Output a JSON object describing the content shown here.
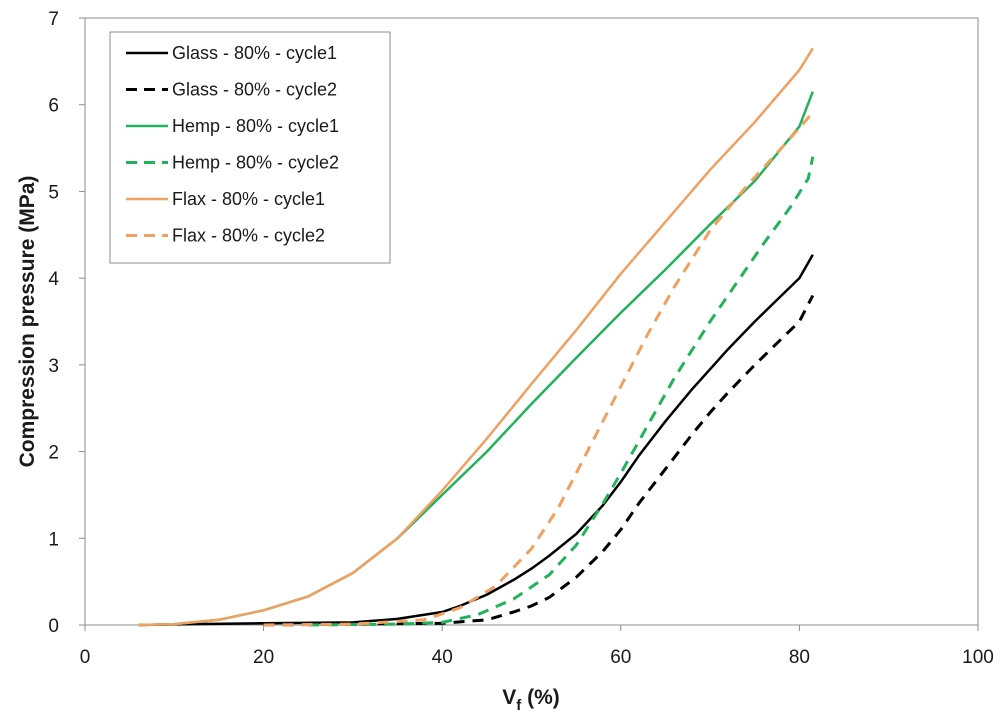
{
  "chart_data": {
    "type": "line",
    "title": "",
    "xlabel": "V",
    "xlabel_subscript": "f",
    "xlabel_suffix": " (%)",
    "ylabel": "Compression pressure (MPa)",
    "xlim": [
      0,
      100
    ],
    "ylim": [
      0,
      7
    ],
    "x_ticks": [
      "0",
      "20",
      "40",
      "60",
      "80",
      "100"
    ],
    "y_ticks": [
      "0",
      "1",
      "2",
      "3",
      "4",
      "5",
      "6",
      "7"
    ],
    "grid": false,
    "legend_position": "top-left",
    "series": [
      {
        "name": "Glass - 80% - cycle1",
        "color": "#000000",
        "dash": "solid",
        "points": [
          [
            6,
            0
          ],
          [
            12,
            0.01
          ],
          [
            20,
            0.02
          ],
          [
            30,
            0.03
          ],
          [
            35,
            0.07
          ],
          [
            40,
            0.15
          ],
          [
            42,
            0.22
          ],
          [
            45,
            0.35
          ],
          [
            48,
            0.52
          ],
          [
            50,
            0.65
          ],
          [
            52,
            0.8
          ],
          [
            55,
            1.05
          ],
          [
            58,
            1.38
          ],
          [
            60,
            1.65
          ],
          [
            62,
            1.95
          ],
          [
            65,
            2.35
          ],
          [
            68,
            2.72
          ],
          [
            70,
            2.95
          ],
          [
            72,
            3.18
          ],
          [
            75,
            3.5
          ],
          [
            78,
            3.8
          ],
          [
            80,
            4.0
          ],
          [
            81.5,
            4.27
          ]
        ]
      },
      {
        "name": "Glass - 80% - cycle2",
        "color": "#000000",
        "dash": "dashed",
        "points": [
          [
            20,
            0
          ],
          [
            30,
            0.01
          ],
          [
            40,
            0.02
          ],
          [
            45,
            0.06
          ],
          [
            48,
            0.15
          ],
          [
            50,
            0.22
          ],
          [
            52,
            0.32
          ],
          [
            55,
            0.55
          ],
          [
            58,
            0.85
          ],
          [
            60,
            1.1
          ],
          [
            62,
            1.4
          ],
          [
            65,
            1.8
          ],
          [
            68,
            2.2
          ],
          [
            70,
            2.45
          ],
          [
            72,
            2.68
          ],
          [
            75,
            3.0
          ],
          [
            78,
            3.3
          ],
          [
            80,
            3.5
          ],
          [
            81.5,
            3.8
          ]
        ]
      },
      {
        "name": "Hemp - 80% - cycle1",
        "color": "#22b25a",
        "dash": "solid",
        "points": [
          [
            6,
            0
          ],
          [
            10,
            0.01
          ],
          [
            15,
            0.06
          ],
          [
            20,
            0.17
          ],
          [
            25,
            0.33
          ],
          [
            30,
            0.6
          ],
          [
            35,
            1.0
          ],
          [
            40,
            1.5
          ],
          [
            45,
            2.0
          ],
          [
            50,
            2.55
          ],
          [
            55,
            3.08
          ],
          [
            60,
            3.6
          ],
          [
            65,
            4.1
          ],
          [
            70,
            4.62
          ],
          [
            75,
            5.12
          ],
          [
            80,
            5.75
          ],
          [
            81.5,
            6.15
          ]
        ]
      },
      {
        "name": "Hemp - 80% - cycle2",
        "color": "#22b25a",
        "dash": "dashed",
        "points": [
          [
            25,
            0
          ],
          [
            35,
            0.01
          ],
          [
            40,
            0.03
          ],
          [
            44,
            0.12
          ],
          [
            48,
            0.3
          ],
          [
            52,
            0.58
          ],
          [
            55,
            0.92
          ],
          [
            58,
            1.4
          ],
          [
            60,
            1.75
          ],
          [
            63,
            2.3
          ],
          [
            66,
            2.85
          ],
          [
            70,
            3.5
          ],
          [
            73,
            3.95
          ],
          [
            76,
            4.4
          ],
          [
            79,
            4.82
          ],
          [
            81,
            5.15
          ],
          [
            81.5,
            5.4
          ]
        ]
      },
      {
        "name": "Flax - 80% - cycle1",
        "color": "#f0a060",
        "dash": "solid",
        "points": [
          [
            6,
            0
          ],
          [
            10,
            0.01
          ],
          [
            15,
            0.06
          ],
          [
            20,
            0.17
          ],
          [
            25,
            0.33
          ],
          [
            30,
            0.6
          ],
          [
            35,
            1.0
          ],
          [
            40,
            1.55
          ],
          [
            45,
            2.15
          ],
          [
            50,
            2.78
          ],
          [
            55,
            3.4
          ],
          [
            60,
            4.05
          ],
          [
            65,
            4.65
          ],
          [
            70,
            5.25
          ],
          [
            75,
            5.8
          ],
          [
            80,
            6.4
          ],
          [
            81.5,
            6.65
          ]
        ]
      },
      {
        "name": "Flax - 80% - cycle2",
        "color": "#f0a060",
        "dash": "dashed",
        "points": [
          [
            20,
            0
          ],
          [
            30,
            0.01
          ],
          [
            38,
            0.06
          ],
          [
            42,
            0.2
          ],
          [
            46,
            0.45
          ],
          [
            50,
            0.88
          ],
          [
            53,
            1.35
          ],
          [
            56,
            1.95
          ],
          [
            60,
            2.75
          ],
          [
            63,
            3.35
          ],
          [
            66,
            3.9
          ],
          [
            70,
            4.55
          ],
          [
            74,
            5.05
          ],
          [
            78,
            5.5
          ],
          [
            81,
            5.85
          ],
          [
            81.5,
            5.95
          ]
        ]
      }
    ]
  }
}
